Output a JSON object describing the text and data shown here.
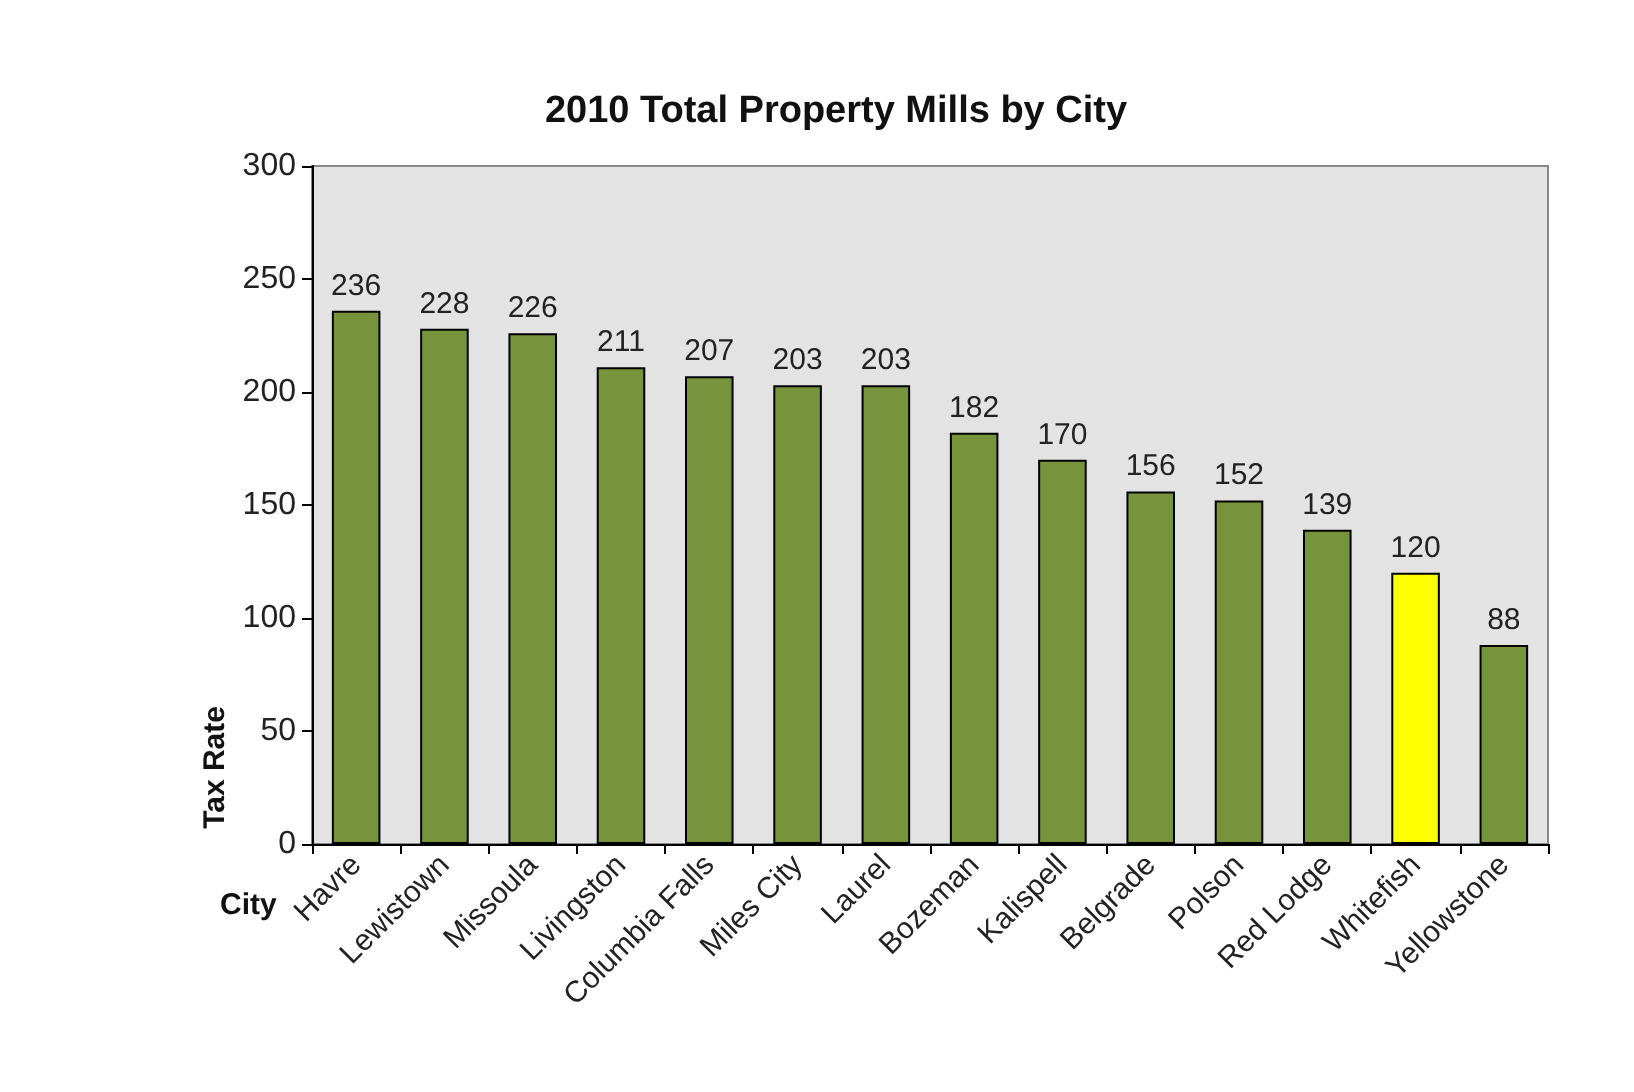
{
  "chart_data": {
    "type": "bar",
    "title": "2010 Total Property Mills by City",
    "xlabel": "City",
    "ylabel": "Tax Rate",
    "categories": [
      "Havre",
      "Lewistown",
      "Missoula",
      "Livingston",
      "Columbia Falls",
      "Miles City",
      "Laurel",
      "Bozeman",
      "Kalispell",
      "Belgrade",
      "Polson",
      "Red Lodge",
      "Whitefish",
      "Yellowstone"
    ],
    "values": [
      236,
      228,
      226,
      211,
      207,
      203,
      203,
      182,
      170,
      156,
      152,
      139,
      120,
      88
    ],
    "colors": [
      "#77933c",
      "#77933c",
      "#77933c",
      "#77933c",
      "#77933c",
      "#77933c",
      "#77933c",
      "#77933c",
      "#77933c",
      "#77933c",
      "#77933c",
      "#77933c",
      "#ffff00",
      "#77933c"
    ],
    "ylim": [
      0,
      300
    ],
    "yticks": [
      0,
      50,
      100,
      150,
      200,
      250,
      300
    ],
    "grid": false,
    "data_labels": true
  }
}
